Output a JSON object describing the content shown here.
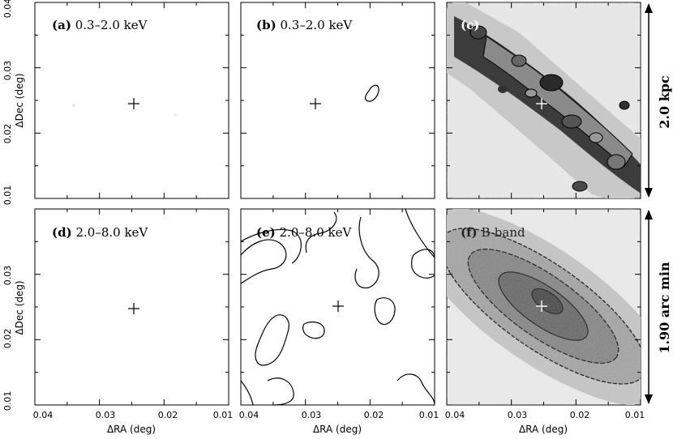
{
  "panels": [
    {
      "id": "a",
      "label_letter": "(a)",
      "label_text": "0.3–2.0 keV"
    },
    {
      "id": "b",
      "label_letter": "(b)",
      "label_text": "0.3–2.0 keV"
    },
    {
      "id": "c",
      "label_letter": "(c)",
      "label_text": ""
    },
    {
      "id": "d",
      "label_letter": "(d)",
      "label_text": "2.0–8.0 keV"
    },
    {
      "id": "e",
      "label_letter": "(e)",
      "label_text": "2.0–8.0 keV"
    },
    {
      "id": "f",
      "label_letter": "(f)",
      "label_text": "B-band"
    }
  ],
  "axes": {
    "x_title": "ΔRA (deg)",
    "y_title": "ΔDec (deg)",
    "x_ticks": [
      "0.04",
      "0.03",
      "0.02",
      "0.01"
    ],
    "y_ticks_top": [
      "0.04",
      "0.03",
      "0.02",
      "0.01"
    ],
    "y_ticks_bottom": [
      "0.03",
      "0.02",
      "0.01"
    ],
    "x_range": [
      0.04,
      0.01
    ],
    "y_range": [
      0.01,
      0.04
    ]
  },
  "scalebars": {
    "top": "2.0 kpc",
    "bottom": "1.90 arc min"
  },
  "colors": {
    "ink": "#000000",
    "background": "#ffffff",
    "grey_dark": "#3a3a3a",
    "grey_mid": "#8c8c8c",
    "grey_light": "#d9d9d9"
  }
}
